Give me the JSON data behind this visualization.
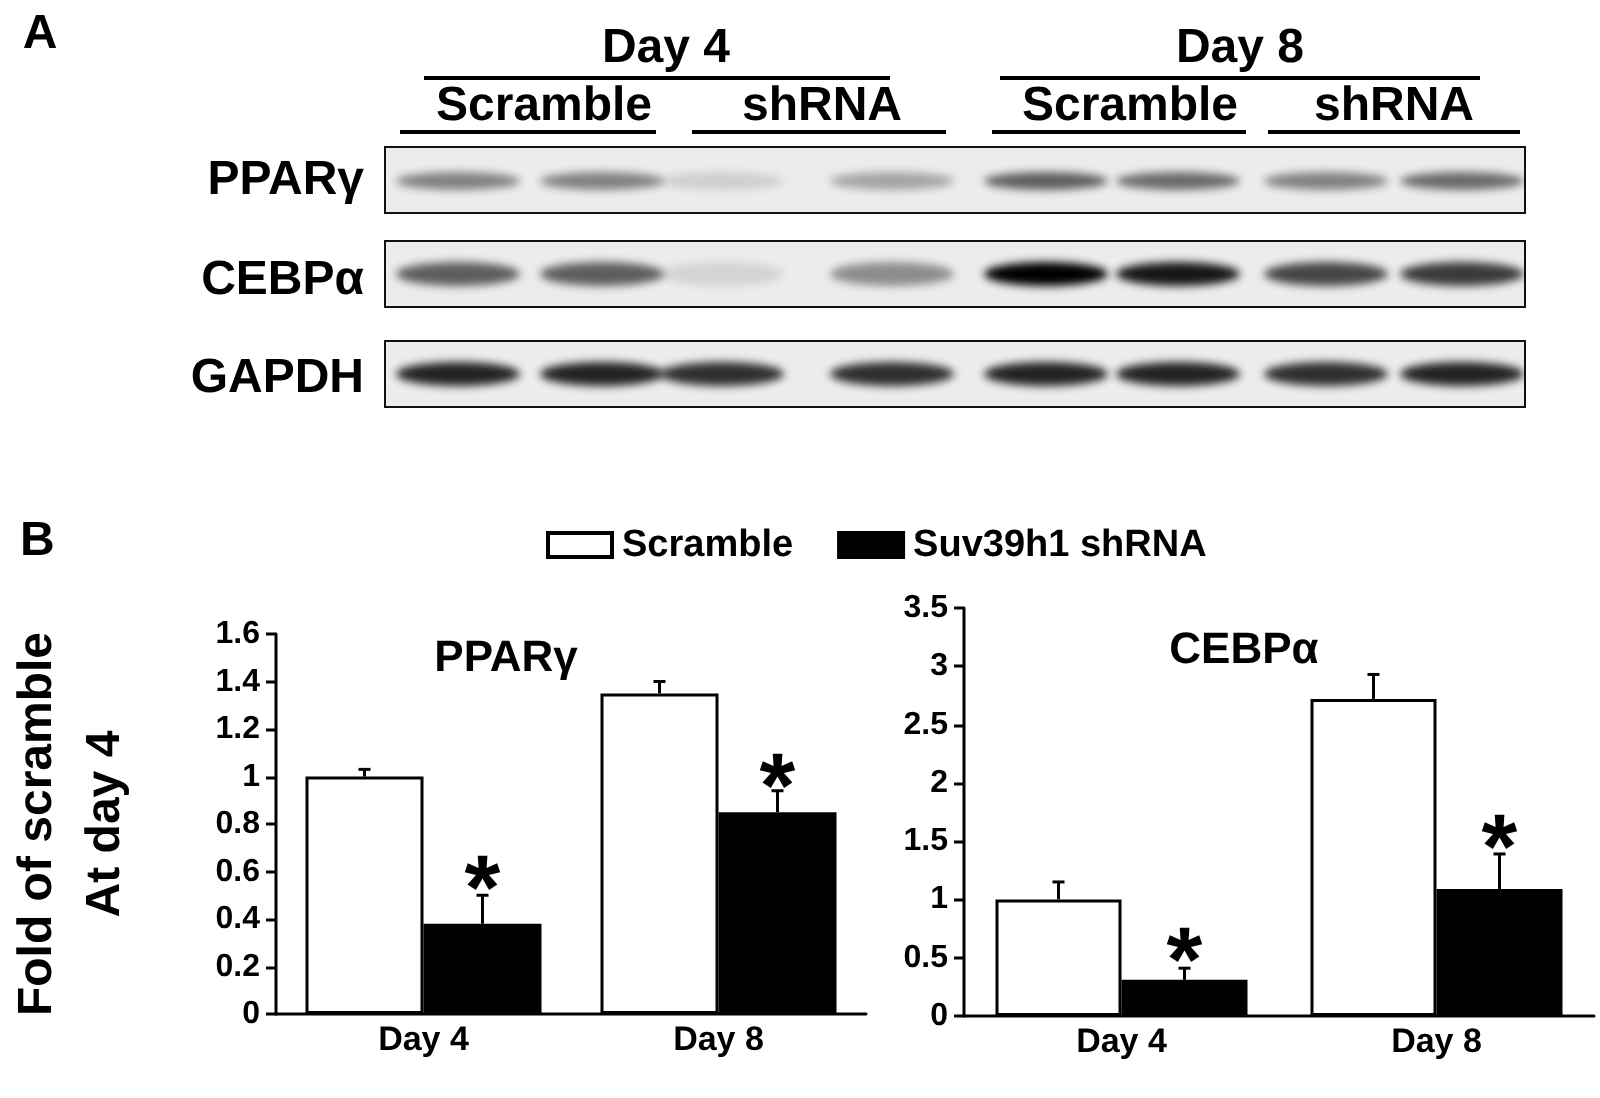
{
  "chart_data": [
    {
      "type": "other",
      "annotations": [
        "A",
        "Day 4",
        "Day 8",
        "Scramble",
        "shRNA",
        "Scramble",
        "shRNA",
        "PPARγ",
        "CEBPα",
        "GAPDH"
      ]
    },
    {
      "type": "bar",
      "title": "PPARγ",
      "ylabel": "Fold of scramble\nAt day 4",
      "categories": [
        "Day 4",
        "Day 8"
      ],
      "series": [
        {
          "name": "Scramble",
          "color": "#ffffff",
          "values": [
            1.0,
            1.35
          ],
          "errors": [
            [
              1.0,
              1.03
            ],
            [
              1.35,
              1.4
            ]
          ]
        },
        {
          "name": "Suv39h1 shRNA",
          "color": "#000000",
          "values": [
            0.38,
            0.85
          ],
          "errors": [
            [
              0.38,
              0.5
            ],
            [
              0.85,
              0.94
            ]
          ]
        }
      ],
      "ylim": [
        0,
        1.6
      ],
      "yticks": [
        0,
        0.2,
        0.4,
        0.6,
        0.8,
        1,
        1.2,
        1.4,
        1.6
      ],
      "legend": "top",
      "annotations": [
        "B",
        {
          "text": "*",
          "x": "Day 4",
          "y": 0.62
        },
        {
          "text": "*",
          "x": "Day 8",
          "y": 1.05
        }
      ]
    },
    {
      "type": "bar",
      "title": "CEBPα",
      "categories": [
        "Day 4",
        "Day 8"
      ],
      "series": [
        {
          "color": "#ffffff",
          "values": [
            1.0,
            2.72
          ],
          "errors": [
            [
              1.0,
              1.15
            ],
            [
              2.72,
              2.93
            ]
          ]
        },
        {
          "color": "#000000",
          "values": [
            0.31,
            1.09
          ],
          "errors": [
            [
              0.31,
              0.41
            ],
            [
              1.09,
              1.39
            ]
          ]
        }
      ],
      "ylim": [
        0,
        3.5
      ],
      "yticks": [
        0,
        0.5,
        1,
        1.5,
        2,
        2.5,
        3,
        3.5
      ],
      "annotations": [
        {
          "text": "*",
          "x": "Day 4",
          "y": 0.66
        },
        {
          "text": "*",
          "x": "Day 8",
          "y": 1.63
        }
      ]
    }
  ]
}
